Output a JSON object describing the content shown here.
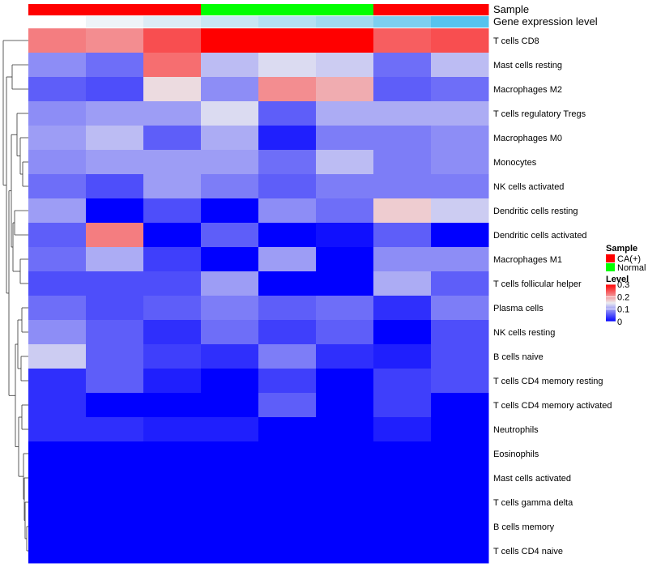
{
  "chart_data": {
    "type": "heatmap",
    "title": "",
    "annotation_tracks": [
      {
        "name": "Sample",
        "label": "Sample",
        "values": [
          "CA(+)",
          "CA(+)",
          "CA(+)",
          "Normal",
          "Normal",
          "Normal",
          "CA(+)",
          "CA(+)"
        ]
      },
      {
        "name": "Gene expression level",
        "label": "Gene expression level",
        "values": [
          "#ffffff",
          "#eef4f8",
          "#dcecf5",
          "#c8e6f3",
          "#b4e0f2",
          "#a0daf0",
          "#7ccff0",
          "#55c3ee"
        ]
      }
    ],
    "rows": [
      "T cells CD8",
      "Mast cells resting",
      "Macrophages M2",
      "T cells regulatory  Tregs",
      "Macrophages M0",
      "Monocytes",
      "NK cells activated",
      "Dendritic cells resting",
      "Dendritic cells activated",
      "Macrophages M1",
      "T cells follicular helper",
      "Plasma cells",
      "NK cells resting",
      "B cells naive",
      "T cells CD4 memory resting",
      "T cells CD4 memory activated",
      "Neutrophils",
      "Eosinophils",
      "Mast cells activated",
      "T cells gamma delta",
      "B cells memory",
      "T cells CD4 naive"
    ],
    "values": [
      [
        0.22,
        0.21,
        0.25,
        0.3,
        0.3,
        0.3,
        0.24,
        0.25
      ],
      [
        0.09,
        0.07,
        0.23,
        0.12,
        0.14,
        0.13,
        0.07,
        0.12
      ],
      [
        0.06,
        0.05,
        0.16,
        0.09,
        0.21,
        0.19,
        0.06,
        0.07
      ],
      [
        0.09,
        0.1,
        0.1,
        0.14,
        0.06,
        0.11,
        0.11,
        0.11
      ],
      [
        0.1,
        0.12,
        0.06,
        0.11,
        0.02,
        0.08,
        0.08,
        0.09
      ],
      [
        0.09,
        0.1,
        0.1,
        0.1,
        0.07,
        0.12,
        0.08,
        0.09
      ],
      [
        0.07,
        0.05,
        0.1,
        0.08,
        0.06,
        0.08,
        0.08,
        0.08
      ],
      [
        0.1,
        0.0,
        0.05,
        0.0,
        0.09,
        0.07,
        0.17,
        0.13
      ],
      [
        0.06,
        0.22,
        0.0,
        0.06,
        0.0,
        0.01,
        0.06,
        0.0
      ],
      [
        0.07,
        0.11,
        0.04,
        0.0,
        0.1,
        0.0,
        0.09,
        0.09
      ],
      [
        0.05,
        0.05,
        0.05,
        0.1,
        0.0,
        0.0,
        0.11,
        0.06
      ],
      [
        0.07,
        0.05,
        0.06,
        0.08,
        0.06,
        0.07,
        0.03,
        0.08
      ],
      [
        0.09,
        0.06,
        0.03,
        0.07,
        0.04,
        0.06,
        0.0,
        0.05
      ],
      [
        0.13,
        0.06,
        0.04,
        0.03,
        0.08,
        0.03,
        0.02,
        0.05
      ],
      [
        0.03,
        0.06,
        0.02,
        0.0,
        0.04,
        0.0,
        0.04,
        0.05
      ],
      [
        0.03,
        0.0,
        0.0,
        0.0,
        0.06,
        0.0,
        0.04,
        0.0
      ],
      [
        0.03,
        0.03,
        0.02,
        0.02,
        0.0,
        0.0,
        0.02,
        0.0
      ],
      [
        0.0,
        0.0,
        0.0,
        0.0,
        0.0,
        0.0,
        0.0,
        0.0
      ],
      [
        0.0,
        0.0,
        0.0,
        0.0,
        0.0,
        0.0,
        0.0,
        0.0
      ],
      [
        0.0,
        0.0,
        0.0,
        0.0,
        0.0,
        0.0,
        0.0,
        0.0
      ],
      [
        0.0,
        0.0,
        0.0,
        0.0,
        0.0,
        0.0,
        0.0,
        0.0
      ],
      [
        0.0,
        0.0,
        0.0,
        0.0,
        0.0,
        0.0,
        0.0,
        0.0
      ]
    ],
    "value_range": [
      0,
      0.3
    ],
    "color_scale": {
      "low": "#0000ff",
      "mid": "#ebebf0",
      "high": "#ff0000",
      "mid_value": 0.15
    },
    "legends": {
      "sample": {
        "title": "Sample",
        "items": [
          {
            "label": "CA(+)",
            "color": "#ff0000"
          },
          {
            "label": "Normal",
            "color": "#00ff00"
          }
        ]
      },
      "level": {
        "title": "Level",
        "ticks": [
          "0.3",
          "0.2",
          "0.1",
          "0"
        ],
        "tick_values": [
          0.3,
          0.2,
          0.1,
          0
        ]
      }
    },
    "dendrogram": "rows"
  }
}
